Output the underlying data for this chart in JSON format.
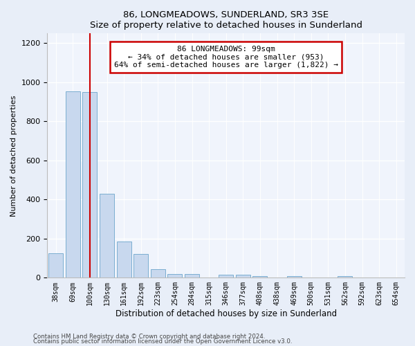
{
  "title": "86, LONGMEADOWS, SUNDERLAND, SR3 3SE",
  "subtitle": "Size of property relative to detached houses in Sunderland",
  "xlabel": "Distribution of detached houses by size in Sunderland",
  "ylabel": "Number of detached properties",
  "categories": [
    "38sqm",
    "69sqm",
    "100sqm",
    "130sqm",
    "161sqm",
    "192sqm",
    "223sqm",
    "254sqm",
    "284sqm",
    "315sqm",
    "346sqm",
    "377sqm",
    "408sqm",
    "438sqm",
    "469sqm",
    "500sqm",
    "531sqm",
    "562sqm",
    "592sqm",
    "623sqm",
    "654sqm"
  ],
  "values": [
    125,
    955,
    950,
    430,
    185,
    120,
    45,
    20,
    20,
    0,
    15,
    15,
    10,
    0,
    10,
    0,
    0,
    10,
    0,
    0,
    0
  ],
  "bar_color": "#c8d8ee",
  "bar_edge_color": "#7aaed0",
  "vline_x_index": 2,
  "vline_color": "#cc0000",
  "annotation_label": "86 LONGMEADOWS: 99sqm",
  "annotation_line1": "← 34% of detached houses are smaller (953)",
  "annotation_line2": "64% of semi-detached houses are larger (1,822) →",
  "annotation_box_edge": "#cc0000",
  "ylim": [
    0,
    1250
  ],
  "yticks": [
    0,
    200,
    400,
    600,
    800,
    1000,
    1200
  ],
  "footer_line1": "Contains HM Land Registry data © Crown copyright and database right 2024.",
  "footer_line2": "Contains public sector information licensed under the Open Government Licence v3.0.",
  "bg_color": "#e8eef8",
  "plot_bg_color": "#f0f4fc"
}
